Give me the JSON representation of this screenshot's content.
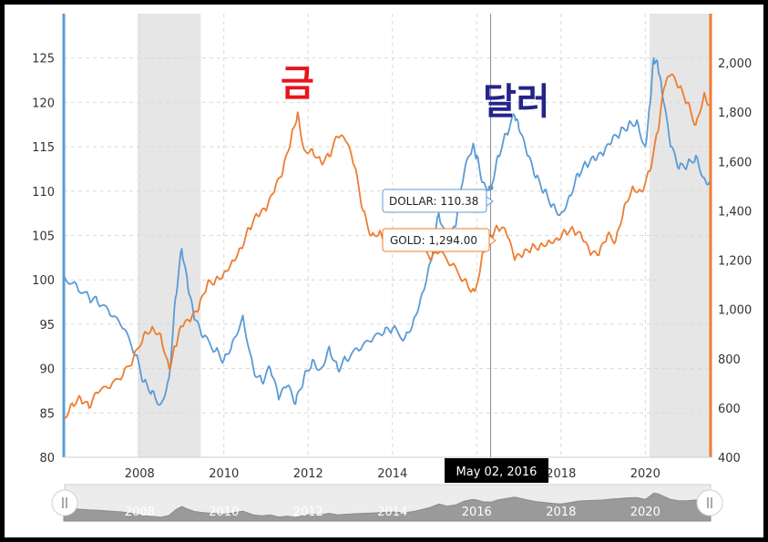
{
  "chart_data": {
    "type": "line",
    "title": "",
    "annotations": {
      "gold_label": "금",
      "dollar_label": "달러"
    },
    "x_ticks": [
      "2008",
      "2010",
      "2012",
      "2014",
      "2016",
      "2018",
      "2020"
    ],
    "y_left_ticks": [
      "80",
      "85",
      "90",
      "95",
      "100",
      "105",
      "110",
      "115",
      "120",
      "125"
    ],
    "y_right_ticks": [
      "400",
      "600",
      "800",
      "1,000",
      "1,200",
      "1,400",
      "1,600",
      "1,800",
      "2,000"
    ],
    "ylim_left": [
      80,
      130
    ],
    "ylim_right": [
      400,
      2200
    ],
    "xlim": [
      2006.2,
      2021.55
    ],
    "recessions": [
      [
        2007.95,
        2009.45
      ],
      [
        2020.1,
        2021.55
      ]
    ],
    "crosshair": {
      "date": "May 02, 2016",
      "x": 2016.33,
      "dollar_label": "DOLLAR: 110.38",
      "gold_label": "GOLD: 1,294.00",
      "dollar_value": 110.38,
      "gold_value": 1294
    },
    "series": [
      {
        "name": "DOLLAR",
        "axis": "left",
        "color": "#5b9bd5",
        "x": [
          2006.2,
          2006.5,
          2006.8,
          2007.0,
          2007.3,
          2007.6,
          2007.9,
          2008.1,
          2008.3,
          2008.5,
          2008.7,
          2008.85,
          2009.0,
          2009.15,
          2009.3,
          2009.5,
          2009.8,
          2010.0,
          2010.2,
          2010.45,
          2010.7,
          2010.9,
          2011.1,
          2011.3,
          2011.5,
          2011.7,
          2011.9,
          2012.1,
          2012.3,
          2012.5,
          2012.7,
          2012.9,
          2013.2,
          2013.5,
          2013.8,
          2014.0,
          2014.3,
          2014.5,
          2014.7,
          2014.9,
          2015.1,
          2015.3,
          2015.5,
          2015.7,
          2015.9,
          2016.0,
          2016.15,
          2016.33,
          2016.5,
          2016.7,
          2016.9,
          2017.0,
          2017.2,
          2017.4,
          2017.6,
          2017.8,
          2018.0,
          2018.2,
          2018.4,
          2018.6,
          2018.8,
          2019.0,
          2019.2,
          2019.4,
          2019.6,
          2019.8,
          2020.0,
          2020.1,
          2020.2,
          2020.3,
          2020.4,
          2020.6,
          2020.8,
          2021.0,
          2021.2,
          2021.4,
          2021.55
        ],
        "values": [
          100.5,
          99.5,
          98,
          97.5,
          96,
          94.5,
          91.5,
          88.5,
          87.5,
          86,
          89,
          98,
          103.5,
          99,
          95.5,
          93.5,
          92,
          91,
          93,
          96,
          90,
          88.5,
          90,
          86.5,
          88,
          86,
          89,
          91,
          90,
          92.5,
          90,
          91,
          92,
          93,
          94,
          94.5,
          93.5,
          95.5,
          98.5,
          102,
          107.5,
          104,
          106,
          112,
          115,
          114,
          111,
          110.38,
          114,
          116.5,
          118.5,
          117,
          114,
          111.5,
          110,
          108.5,
          107.5,
          109.5,
          112,
          113,
          113.5,
          114,
          115.5,
          116.5,
          117.5,
          118,
          115,
          119.5,
          125,
          124,
          121,
          115,
          112.5,
          113,
          114,
          111.5,
          111
        ]
      },
      {
        "name": "GOLD",
        "axis": "right",
        "color": "#ed7d31",
        "x": [
          2006.2,
          2006.4,
          2006.6,
          2006.8,
          2007.0,
          2007.3,
          2007.6,
          2007.85,
          2008.1,
          2008.3,
          2008.5,
          2008.7,
          2008.85,
          2009.0,
          2009.2,
          2009.4,
          2009.6,
          2009.8,
          2010.0,
          2010.2,
          2010.4,
          2010.6,
          2010.8,
          2011.0,
          2011.2,
          2011.4,
          2011.6,
          2011.75,
          2011.9,
          2012.1,
          2012.3,
          2012.5,
          2012.7,
          2012.9,
          2013.1,
          2013.3,
          2013.5,
          2013.7,
          2013.9,
          2014.1,
          2014.3,
          2014.6,
          2014.9,
          2015.1,
          2015.4,
          2015.7,
          2015.9,
          2016.0,
          2016.15,
          2016.33,
          2016.5,
          2016.7,
          2016.9,
          2017.1,
          2017.3,
          2017.5,
          2017.7,
          2017.9,
          2018.1,
          2018.3,
          2018.5,
          2018.7,
          2018.9,
          2019.1,
          2019.3,
          2019.5,
          2019.7,
          2019.9,
          2020.1,
          2020.3,
          2020.45,
          2020.6,
          2020.8,
          2021.0,
          2021.2,
          2021.4,
          2021.55
        ],
        "values": [
          560,
          620,
          640,
          600,
          660,
          680,
          730,
          800,
          900,
          930,
          900,
          760,
          850,
          930,
          950,
          1000,
          1100,
          1120,
          1150,
          1200,
          1250,
          1330,
          1380,
          1400,
          1480,
          1560,
          1700,
          1800,
          1650,
          1650,
          1600,
          1620,
          1700,
          1680,
          1580,
          1400,
          1300,
          1320,
          1260,
          1280,
          1300,
          1260,
          1200,
          1230,
          1180,
          1120,
          1080,
          1100,
          1240,
          1294,
          1330,
          1310,
          1200,
          1220,
          1250,
          1260,
          1280,
          1290,
          1320,
          1320,
          1290,
          1220,
          1220,
          1300,
          1280,
          1420,
          1500,
          1480,
          1560,
          1720,
          1900,
          1950,
          1900,
          1840,
          1750,
          1880,
          1820
        ]
      }
    ]
  }
}
